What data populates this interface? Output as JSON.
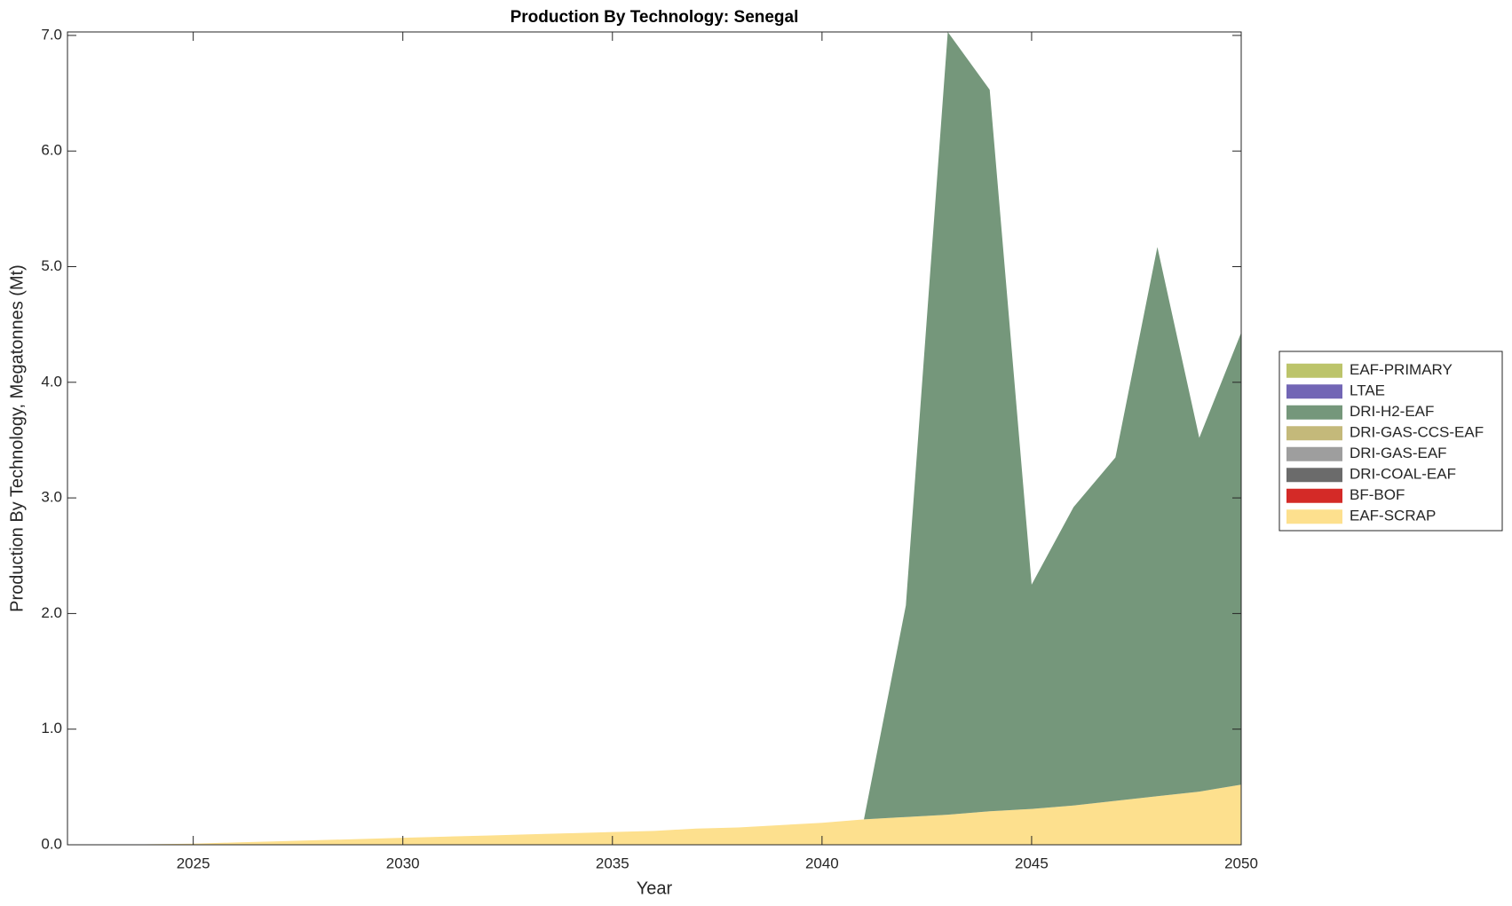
{
  "chart_data": {
    "type": "stacked-area",
    "title": "Production By Technology: Senegal",
    "x_label": "Year",
    "y_label": "Production By Technology, Megatonnes (Mt)",
    "x": [
      2022,
      2023,
      2024,
      2025,
      2026,
      2027,
      2028,
      2029,
      2030,
      2031,
      2032,
      2033,
      2034,
      2035,
      2036,
      2037,
      2038,
      2039,
      2040,
      2041,
      2042,
      2043,
      2044,
      2045,
      2046,
      2047,
      2048,
      2049,
      2050
    ],
    "series": [
      {
        "name": "EAF-SCRAP",
        "color": "#fde08e",
        "values": [
          0,
          0,
          0.005,
          0.01,
          0.02,
          0.03,
          0.04,
          0.05,
          0.06,
          0.07,
          0.08,
          0.09,
          0.1,
          0.11,
          0.12,
          0.14,
          0.15,
          0.17,
          0.19,
          0.22,
          0.24,
          0.26,
          0.29,
          0.31,
          0.34,
          0.38,
          0.42,
          0.46,
          0.52
        ]
      },
      {
        "name": "BF-BOF",
        "color": "#d42a27",
        "values": [
          0,
          0,
          0,
          0,
          0,
          0,
          0,
          0,
          0,
          0,
          0,
          0,
          0,
          0,
          0,
          0,
          0,
          0,
          0,
          0,
          0,
          0,
          0,
          0,
          0,
          0,
          0,
          0,
          0
        ]
      },
      {
        "name": "DRI-COAL-EAF",
        "color": "#6b6b6b",
        "values": [
          0,
          0,
          0,
          0,
          0,
          0,
          0,
          0,
          0,
          0,
          0,
          0,
          0,
          0,
          0,
          0,
          0,
          0,
          0,
          0,
          0,
          0,
          0,
          0,
          0,
          0,
          0,
          0,
          0
        ]
      },
      {
        "name": "DRI-GAS-EAF",
        "color": "#9e9e9e",
        "values": [
          0,
          0,
          0,
          0,
          0,
          0,
          0,
          0,
          0,
          0,
          0,
          0,
          0,
          0,
          0,
          0,
          0,
          0,
          0,
          0,
          0,
          0,
          0,
          0,
          0,
          0,
          0,
          0,
          0
        ]
      },
      {
        "name": "DRI-GAS-CCS-EAF",
        "color": "#c4b97a",
        "values": [
          0,
          0,
          0,
          0,
          0,
          0,
          0,
          0,
          0,
          0,
          0,
          0,
          0,
          0,
          0,
          0,
          0,
          0,
          0,
          0,
          0,
          0,
          0,
          0,
          0,
          0,
          0,
          0,
          0
        ]
      },
      {
        "name": "DRI-H2-EAF",
        "color": "#75977b",
        "values": [
          0,
          0,
          0,
          0,
          0,
          0,
          0,
          0,
          0,
          0,
          0,
          0,
          0,
          0,
          0,
          0,
          0,
          0,
          0,
          0,
          1.83,
          6.77,
          6.24,
          1.94,
          2.58,
          2.97,
          4.75,
          3.06,
          3.91
        ]
      },
      {
        "name": "LTAE",
        "color": "#7266b5",
        "values": [
          0,
          0,
          0,
          0,
          0,
          0,
          0,
          0,
          0,
          0,
          0,
          0,
          0,
          0,
          0,
          0,
          0,
          0,
          0,
          0,
          0,
          0,
          0,
          0,
          0,
          0,
          0,
          0,
          0
        ]
      },
      {
        "name": "EAF-PRIMARY",
        "color": "#bcc46a",
        "values": [
          0,
          0,
          0,
          0,
          0,
          0,
          0,
          0,
          0,
          0,
          0,
          0,
          0,
          0,
          0,
          0,
          0,
          0,
          0,
          0,
          0,
          0,
          0,
          0,
          0,
          0,
          0,
          0,
          0
        ]
      }
    ],
    "xlim": [
      2022,
      2050
    ],
    "xticks": [
      2025,
      2030,
      2035,
      2040,
      2045,
      2050
    ],
    "ylim": [
      0,
      7.03
    ],
    "yticks": [
      {
        "value": 0,
        "label": "0.0"
      },
      {
        "value": 1,
        "label": "1.0"
      },
      {
        "value": 2,
        "label": "2.0"
      },
      {
        "value": 3,
        "label": "3.0"
      },
      {
        "value": 4,
        "label": "4.0"
      },
      {
        "value": 5,
        "label": "5.0"
      },
      {
        "value": 6,
        "label": "6.0"
      },
      {
        "value": 7,
        "label": "7.0"
      }
    ],
    "legend": "outside-right"
  }
}
